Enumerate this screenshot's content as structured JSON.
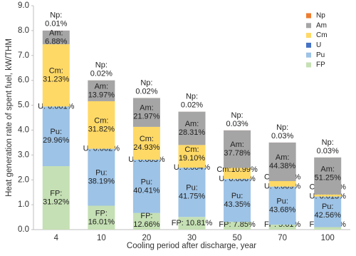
{
  "chart_data": {
    "type": "bar",
    "stacked": true,
    "xlabel": "Cooling period after discharge, year",
    "ylabel": "Heat generation rate of spent fuel, kW/THM",
    "categories": [
      "4",
      "10",
      "20",
      "30",
      "50",
      "70",
      "100"
    ],
    "ylim": [
      0,
      9
    ],
    "yticks": [
      {
        "value": 0,
        "label": "0.0"
      },
      {
        "value": 1,
        "label": "1.0"
      },
      {
        "value": 2,
        "label": "2.0"
      },
      {
        "value": 3,
        "label": "3.0"
      },
      {
        "value": 4,
        "label": "4.0"
      },
      {
        "value": 5,
        "label": "5.0"
      },
      {
        "value": 6,
        "label": "6.0"
      },
      {
        "value": 7,
        "label": "7.0"
      },
      {
        "value": 8,
        "label": "8.0"
      },
      {
        "value": 9,
        "label": "9.0"
      }
    ],
    "legend": "upper right",
    "series": [
      {
        "name": "FP",
        "color": "#c5e0b4",
        "values": [
          2.55,
          0.96,
          0.67,
          0.51,
          0.31,
          0.2,
          0.1
        ],
        "labels": [
          [
            "FP:",
            "31.92%"
          ],
          [
            "FP:",
            "16.01%"
          ],
          [
            "FP:",
            "12.66%"
          ],
          [
            "FP: 10.81%"
          ],
          [
            "FP: 7.85%"
          ],
          [
            "FP: 5.61%"
          ],
          [
            "FP: 3.28%"
          ]
        ]
      },
      {
        "name": "Pu",
        "color": "#9dc3e6",
        "values": [
          2.4,
          2.29,
          2.14,
          1.98,
          1.73,
          1.53,
          1.23
        ],
        "labels": [
          [
            "Pu:",
            "29.96%"
          ],
          [
            "Pu:",
            "38.19%"
          ],
          [
            "Pu:",
            "40.41%"
          ],
          [
            "Pu:",
            "41.75%"
          ],
          [
            "Pu:",
            "43.35%"
          ],
          [
            "Pu:",
            "43.68%"
          ],
          [
            "Pu:",
            "42.56%"
          ]
        ]
      },
      {
        "name": "U",
        "color": "#4472c4",
        "values": [
          0.0001,
          0.0001,
          0.0002,
          0.0002,
          0.0002,
          0.0003,
          0.0004
        ],
        "labels": [
          [
            "U: 0.001%"
          ],
          [
            "U: 0.002%"
          ],
          [
            "U: 0.003%"
          ],
          [
            "U: 0.004%"
          ],
          [
            "U: 0.006%"
          ],
          [
            "U: 0.009%"
          ],
          [
            "U: 0.013%"
          ]
        ]
      },
      {
        "name": "Cm",
        "color": "#ffd966",
        "values": [
          2.5,
          1.91,
          1.32,
          0.91,
          0.44,
          0.22,
          0.08
        ],
        "labels": [
          [
            "Cm:",
            "31.23%"
          ],
          [
            "Cm:",
            "31.82%"
          ],
          [
            "Cm:",
            "24.93%"
          ],
          [
            "Cm:",
            "19.10%"
          ],
          [
            "Cm:10.99%"
          ],
          [
            "Cm:6.29%"
          ],
          [
            "Cm:2.86%"
          ]
        ]
      },
      {
        "name": "Am",
        "color": "#a5a5a5",
        "values": [
          0.55,
          0.84,
          1.16,
          1.34,
          1.51,
          1.55,
          1.49
        ],
        "labels": [
          [
            "Am:",
            "6.88%"
          ],
          [
            "Am:",
            "13.97%"
          ],
          [
            "Am:",
            "21.97%"
          ],
          [
            "Am:",
            "28.31%"
          ],
          [
            "Am:",
            "37.78%"
          ],
          [
            "Am:",
            "44.38%"
          ],
          [
            "Am:",
            "51.25%"
          ]
        ]
      },
      {
        "name": "Np",
        "color": "#ed7d31",
        "values": [
          0.001,
          0.001,
          0.001,
          0.001,
          0.001,
          0.001,
          0.001
        ],
        "labels": [
          [
            "Np:",
            "0.01%"
          ],
          [
            "Np:",
            "0.02%"
          ],
          [
            "Np:",
            "0.02%"
          ],
          [
            "Np:",
            "0.02%"
          ],
          [
            "Np:",
            "0.03%"
          ],
          [
            "Np:",
            "0.03%"
          ],
          [
            "Np:",
            "0.03%"
          ]
        ]
      }
    ]
  }
}
